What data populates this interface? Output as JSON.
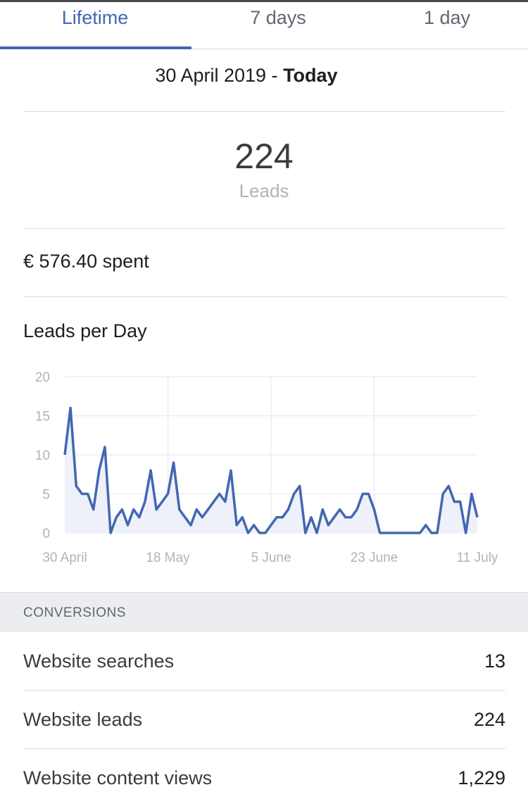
{
  "tabs": [
    {
      "label": "Lifetime",
      "active": true
    },
    {
      "label": "7 days",
      "active": false
    },
    {
      "label": "1 day",
      "active": false
    }
  ],
  "date_range": {
    "start": "30 April 2019",
    "separator": "-",
    "end": "Today"
  },
  "summary": {
    "value": "224",
    "label": "Leads"
  },
  "spent": {
    "currency": "€",
    "amount": "576.40",
    "suffix": "spent"
  },
  "chart_title": "Leads per Day",
  "colors": {
    "accent": "#4267b2",
    "line": "#4267b2",
    "fill": "#eef1fa"
  },
  "chart_data": {
    "type": "area",
    "x_tick_labels": [
      "30 April",
      "18 May",
      "5 June",
      "23 June",
      "11 July"
    ],
    "y_tick_labels": [
      "20",
      "15",
      "10",
      "5",
      "0"
    ],
    "ylim": [
      0,
      20
    ],
    "grid": true,
    "series": [
      {
        "values": [
          10,
          16,
          6,
          5,
          5,
          3,
          8,
          11,
          0,
          2,
          3,
          1,
          3,
          2,
          4,
          8,
          3,
          4,
          5,
          9,
          3,
          2,
          1,
          3,
          2,
          3,
          4,
          5,
          4,
          8,
          1,
          2,
          0,
          1,
          0,
          0,
          1,
          2,
          2,
          3,
          5,
          6,
          0,
          2,
          0,
          3,
          1,
          2,
          3,
          2,
          2,
          3,
          5,
          5,
          3,
          0,
          0,
          0,
          0,
          0,
          0,
          0,
          0,
          1,
          0,
          0,
          5,
          6,
          4,
          4,
          0,
          5,
          2
        ]
      }
    ]
  },
  "conversions": {
    "header": "CONVERSIONS",
    "rows": [
      {
        "label": "Website searches",
        "value": "13"
      },
      {
        "label": "Website leads",
        "value": "224"
      },
      {
        "label": "Website content views",
        "value": "1,229"
      }
    ]
  }
}
